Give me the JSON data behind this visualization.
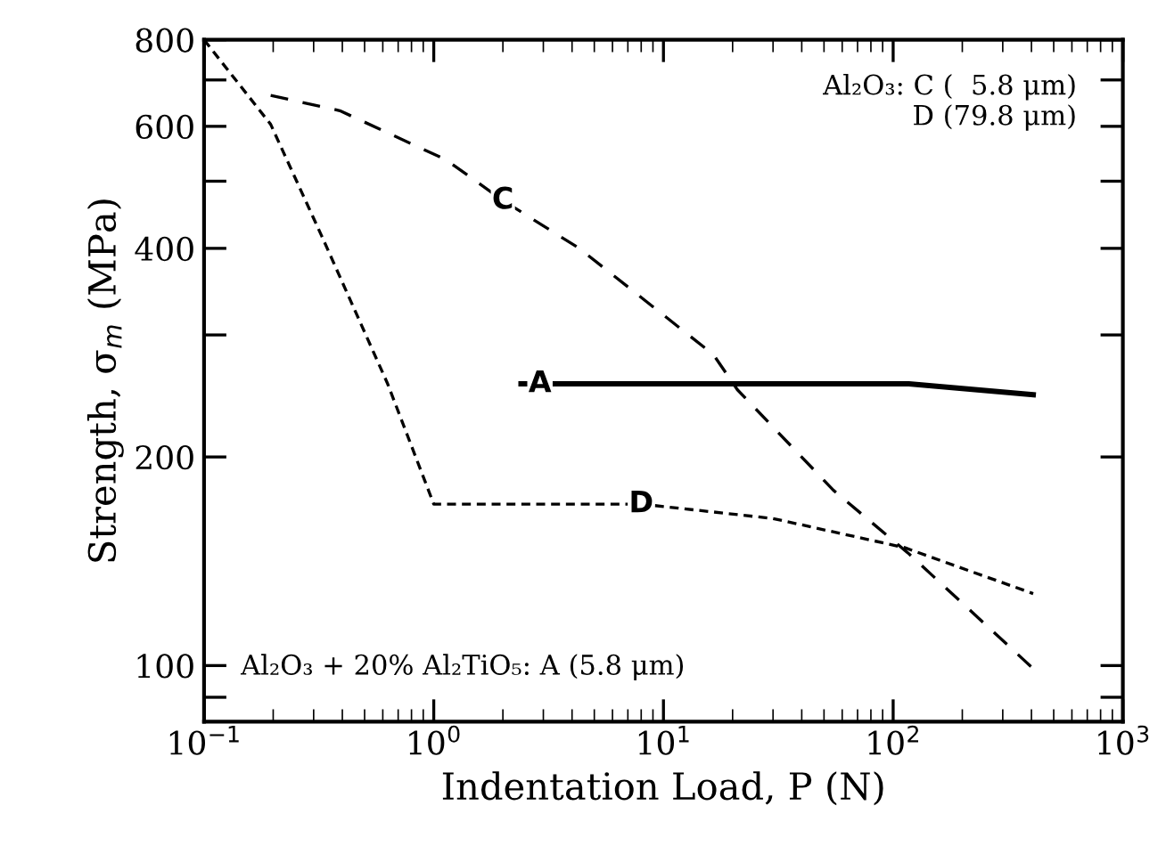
{
  "chart_data": {
    "type": "line",
    "xlabel": "Indentation Load, P (N)",
    "ylabel": "Strength, σ$_{m}$ (MPa)",
    "log": "xy",
    "xlim": [
      0.1,
      1000
    ],
    "ylim": [
      83,
      800
    ],
    "xticks": [
      {
        "value": 0.1,
        "label": "10$^{−1}$"
      },
      {
        "value": 1,
        "label": "10$^{0}$"
      },
      {
        "value": 10,
        "label": "10$^{1}$"
      },
      {
        "value": 100,
        "label": "10$^{2}$"
      },
      {
        "value": 1000,
        "label": "10$^{3}$"
      }
    ],
    "yticks": [
      {
        "value": 90,
        "label": null
      },
      100,
      200,
      {
        "value": 300,
        "label": null
      },
      400,
      {
        "value": 500,
        "label": null
      },
      600,
      {
        "value": 700,
        "label": null
      },
      800
    ],
    "grid": false,
    "legend": false,
    "marker": "none",
    "series": [
      {
        "color": "#000000",
        "line_style": "dashed",
        "x": [
          0.195,
          0.39,
          1.13,
          2.0,
          4.3,
          16.5,
          21,
          55,
          117,
          407
        ],
        "values": [
          665,
          632,
          537,
          469,
          400,
          281,
          250,
          179,
          145,
          99
        ]
      },
      {
        "color": "#000000",
        "line_style": "dotted",
        "x": [
          0.1,
          0.195,
          0.325,
          0.63,
          1.0,
          8,
          30,
          112,
          407
        ],
        "values": [
          800,
          604,
          417,
          255,
          171,
          171,
          163,
          148,
          127
        ]
      },
      {
        "color": "#000000",
        "line_style": "solid",
        "x": [
          2.4,
          10,
          117,
          407
        ],
        "values": [
          255,
          255,
          255,
          246
        ]
      }
    ],
    "annotations": [
      {
        "text": "C",
        "x": 2.0,
        "y": 469
      },
      {
        "text": "D",
        "x": 8,
        "y": 171
      },
      {
        "text": "A",
        "x": 2.9,
        "y": 255
      },
      "Al₂O₃: C (  5.8 μm)\n           D (79.8 μm)",
      "Al₂O₃ + 20% Al₂TiO₅: A (5.8 μm)"
    ]
  }
}
